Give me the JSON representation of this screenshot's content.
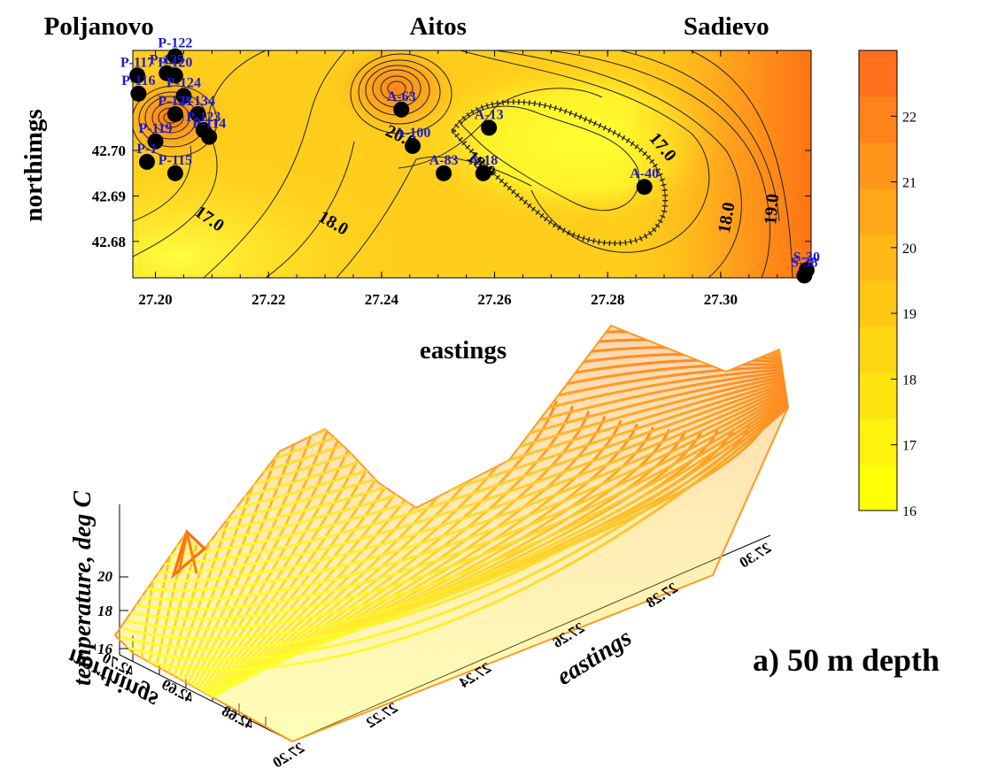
{
  "chart_data": [
    {
      "type": "contour",
      "xlabel": "eastings",
      "ylabel": "northimgs",
      "xlim": [
        27.196,
        27.316
      ],
      "ylim": [
        42.672,
        42.722
      ],
      "x_ticks": [
        "27.20",
        "27.22",
        "27.24",
        "27.26",
        "27.28",
        "27.30"
      ],
      "y_ticks": [
        "42.68",
        "42.69",
        "42.70"
      ],
      "x_tick_values": [
        27.2,
        27.22,
        27.24,
        27.26,
        27.28,
        27.3
      ],
      "y_tick_values": [
        42.68,
        42.69,
        42.7
      ],
      "place_labels": [
        {
          "name": "Poljanovo",
          "x": 27.19
        },
        {
          "name": "Aitos",
          "x": 27.25
        },
        {
          "name": "Sadievo",
          "x": 27.301
        }
      ],
      "contour_labels": [
        {
          "text": "17.0",
          "x": 27.209,
          "y": 42.684
        },
        {
          "text": "18.0",
          "x": 27.231,
          "y": 42.683
        },
        {
          "text": "17.0",
          "x": 27.289,
          "y": 42.7
        },
        {
          "text": "18.0",
          "x": 27.302,
          "y": 42.685
        },
        {
          "text": "19.0",
          "x": 27.31,
          "y": 42.687
        },
        {
          "text": "20.0",
          "x": 27.243,
          "y": 42.702
        },
        {
          "text": "18.0",
          "x": 27.257,
          "y": 42.696
        }
      ],
      "wells": [
        {
          "name": "P-122",
          "x": 27.2035,
          "y": 42.7207
        },
        {
          "name": "P-117",
          "x": 27.1968,
          "y": 42.7165
        },
        {
          "name": "P-125",
          "x": 27.202,
          "y": 42.717
        },
        {
          "name": "P-116",
          "x": 27.197,
          "y": 42.7125
        },
        {
          "name": "P-120",
          "x": 27.2035,
          "y": 42.7165
        },
        {
          "name": "P-124",
          "x": 27.205,
          "y": 42.712
        },
        {
          "name": "P-121",
          "x": 27.2035,
          "y": 42.708
        },
        {
          "name": "P-134",
          "x": 27.2075,
          "y": 42.708
        },
        {
          "name": "P-123",
          "x": 27.2085,
          "y": 42.7045
        },
        {
          "name": "P-114",
          "x": 27.2095,
          "y": 42.703
        },
        {
          "name": "P-119",
          "x": 27.2,
          "y": 42.702
        },
        {
          "name": "P-1",
          "x": 27.1985,
          "y": 42.6975
        },
        {
          "name": "P-115",
          "x": 27.2035,
          "y": 42.695
        },
        {
          "name": "A-63",
          "x": 27.2435,
          "y": 42.709
        },
        {
          "name": "A-100",
          "x": 27.2455,
          "y": 42.701
        },
        {
          "name": "A-13",
          "x": 27.259,
          "y": 42.705
        },
        {
          "name": "A-18",
          "x": 27.258,
          "y": 42.695
        },
        {
          "name": "A-83",
          "x": 27.251,
          "y": 42.695
        },
        {
          "name": "A-40",
          "x": 27.2865,
          "y": 42.692
        },
        {
          "name": "S-30",
          "x": 27.3152,
          "y": 42.6737
        },
        {
          "name": "S-38",
          "x": 27.3148,
          "y": 42.6725
        }
      ],
      "temperature_range": [
        16,
        23
      ]
    },
    {
      "type": "surface",
      "xlabel": "eastings",
      "ylabel": "northings",
      "zlabel": "temperature, deg C",
      "x_ticks": [
        "27.20",
        "27.22",
        "27.24",
        "27.26",
        "27.28",
        "27.30"
      ],
      "y_ticks": [
        "42.70",
        "42.69",
        "42.68"
      ],
      "z_ticks": [
        "20",
        "18",
        "16"
      ]
    }
  ],
  "colorbar": {
    "ticks": [
      "22",
      "21",
      "20",
      "19",
      "18",
      "17",
      "16"
    ],
    "min": 16,
    "max": 23,
    "colors": [
      "#ffff05",
      "#fff20c",
      "#ffe40f",
      "#ffd612",
      "#ffc714",
      "#ffb816",
      "#ffa718",
      "#ff951a",
      "#ff831b",
      "#fe701c"
    ]
  },
  "caption": "a) 50 m depth"
}
